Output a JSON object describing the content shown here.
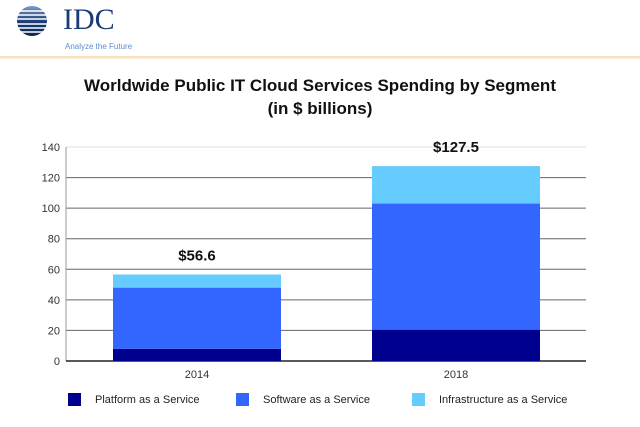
{
  "logo": {
    "text": "IDC",
    "tagline": "Analyze the Future"
  },
  "chart_data": {
    "type": "bar",
    "stacked": true,
    "title": "Worldwide Public IT Cloud Services Spending by Segment",
    "subtitle": "(in $ billions)",
    "categories": [
      "2014",
      "2018"
    ],
    "totals": [
      "$56.6",
      "$127.5"
    ],
    "ylim": [
      0,
      140
    ],
    "yticks": [
      0,
      20,
      40,
      60,
      80,
      100,
      120,
      140
    ],
    "grid": true,
    "legend_position": "bottom",
    "series": [
      {
        "name": "Platform as a Service",
        "color": "#00008f",
        "values": [
          8,
          20.5
        ]
      },
      {
        "name": "Software as a Service",
        "color": "#3366ff",
        "values": [
          40,
          82.5
        ]
      },
      {
        "name": "Infrastructure as a Service",
        "color": "#66ccff",
        "values": [
          8.6,
          24.5
        ]
      }
    ]
  }
}
